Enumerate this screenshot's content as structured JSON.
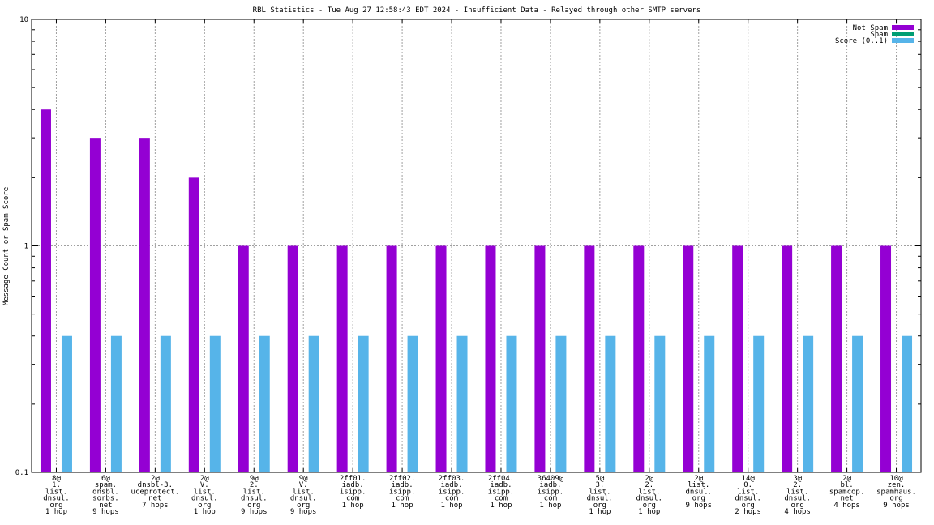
{
  "chart_data": {
    "type": "bar",
    "title": "RBL Statistics - Tue Aug 27 12:58:43 EDT 2024 - Insufficient Data - Relayed through other SMTP servers",
    "ylabel": "Message Count or Spam Score",
    "xlabel": "",
    "yscale": "log",
    "ylim": [
      0.1,
      10
    ],
    "yticks": [
      "10",
      "1",
      "0.1"
    ],
    "grid": true,
    "legend_position": "top-right",
    "categories": [
      [
        "8@",
        "1.",
        "list.",
        "dnsul.",
        "org",
        "1 hop"
      ],
      [
        "6@",
        "spam.",
        "dnsbl.",
        "sorbs.",
        "net",
        "9 hops"
      ],
      [
        "2@",
        "dnsbl-3.",
        "uceprotect.",
        "net",
        "7 hops"
      ],
      [
        "2@",
        "V.",
        "list.",
        "dnsul.",
        "org",
        "1 hop"
      ],
      [
        "9@",
        "2.",
        "list.",
        "dnsul.",
        "org",
        "9 hops"
      ],
      [
        "9@",
        "V.",
        "list.",
        "dnsul.",
        "org",
        "9 hops"
      ],
      [
        "2ff01.",
        "iadb.",
        "isipp.",
        "com",
        "1 hop"
      ],
      [
        "2ff02.",
        "iadb.",
        "isipp.",
        "com",
        "1 hop"
      ],
      [
        "2ff03.",
        "iadb.",
        "isipp.",
        "com",
        "1 hop"
      ],
      [
        "2ff04.",
        "iadb.",
        "isipp.",
        "com",
        "1 hop"
      ],
      [
        "36409@",
        "iadb.",
        "isipp.",
        "com",
        "1 hop"
      ],
      [
        "5@",
        "3.",
        "list.",
        "dnsul.",
        "org",
        "1 hop"
      ],
      [
        "2@",
        "2.",
        "list.",
        "dnsul.",
        "org",
        "1 hop"
      ],
      [
        "2@",
        "list.",
        "dnsul.",
        "org",
        "9 hops"
      ],
      [
        "14@",
        "0.",
        "list.",
        "dnsul.",
        "org",
        "2 hops"
      ],
      [
        "3@",
        "2.",
        "list.",
        "dnsul.",
        "org",
        "4 hops"
      ],
      [
        "2@",
        "bl.",
        "spamcop.",
        "net",
        "4 hops"
      ],
      [
        "10@",
        "zen.",
        "spamhaus.",
        "org",
        "9 hops"
      ]
    ],
    "series": [
      {
        "name": "Not Spam",
        "color": "#9400d3",
        "values": [
          4,
          3,
          3,
          2,
          1,
          1,
          1,
          1,
          1,
          1,
          1,
          1,
          1,
          1,
          1,
          1,
          1,
          1
        ]
      },
      {
        "name": "Spam",
        "color": "#009e73",
        "values": [
          0,
          0,
          0,
          0,
          0,
          0,
          0,
          0,
          0,
          0,
          0,
          0,
          0,
          0,
          0,
          0,
          0,
          0
        ]
      },
      {
        "name": "Score (0..1)",
        "color": "#56b4e9",
        "values": [
          0.4,
          0.4,
          0.4,
          0.4,
          0.4,
          0.4,
          0.4,
          0.4,
          0.4,
          0.4,
          0.4,
          0.4,
          0.4,
          0.4,
          0.4,
          0.4,
          0.4,
          0.4
        ]
      }
    ]
  }
}
